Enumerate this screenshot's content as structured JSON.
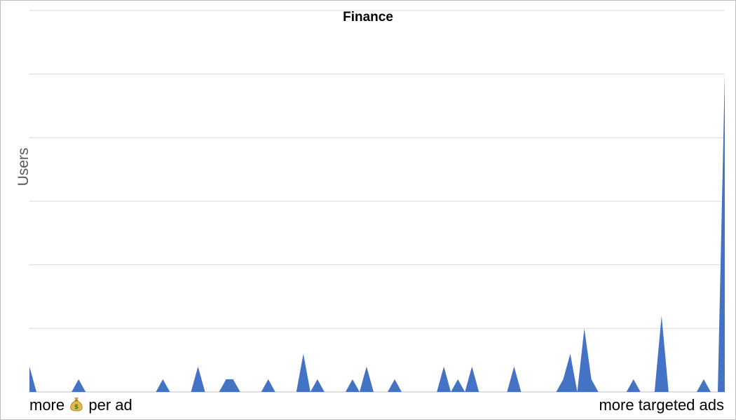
{
  "chart_data": {
    "type": "area",
    "title": "Finance",
    "ylabel": "Users",
    "xlabel_left": "more",
    "xlabel_left_icon": "money-bag-icon",
    "xlabel_left_suffix": "per ad",
    "xlabel_right": "more targeted ads",
    "ylim": [
      0,
      6
    ],
    "grid": true,
    "color": "#4472c4",
    "x": [
      0,
      1,
      2,
      3,
      4,
      5,
      6,
      7,
      8,
      9,
      10,
      11,
      12,
      13,
      14,
      15,
      16,
      17,
      18,
      19,
      20,
      21,
      22,
      23,
      24,
      25,
      26,
      27,
      28,
      29,
      30,
      31,
      32,
      33,
      34,
      35,
      36,
      37,
      38,
      39,
      40,
      41,
      42,
      43,
      44,
      45,
      46,
      47,
      48,
      49,
      50,
      51,
      52,
      53,
      54,
      55,
      56,
      57,
      58,
      59,
      60,
      61,
      62,
      63,
      64,
      65,
      66,
      67,
      68,
      69,
      70,
      71,
      72,
      73,
      74,
      75,
      76,
      77,
      78,
      79,
      80,
      81,
      82,
      83,
      84,
      85,
      86,
      87,
      88,
      89,
      90,
      91,
      92,
      93,
      94,
      95,
      96,
      97,
      98,
      99
    ],
    "values": [
      0.4,
      0,
      0,
      0,
      0,
      0,
      0,
      0.2,
      0,
      0,
      0,
      0,
      0,
      0,
      0,
      0,
      0,
      0,
      0,
      0.2,
      0,
      0,
      0,
      0,
      0.4,
      0,
      0,
      0,
      0.2,
      0.2,
      0,
      0,
      0,
      0,
      0.2,
      0,
      0,
      0,
      0,
      0.6,
      0,
      0.2,
      0,
      0,
      0,
      0,
      0.2,
      0,
      0.4,
      0,
      0,
      0,
      0.2,
      0,
      0,
      0,
      0,
      0,
      0,
      0.4,
      0,
      0.2,
      0,
      0.4,
      0,
      0,
      0,
      0,
      0,
      0.4,
      0,
      0,
      0,
      0,
      0,
      0,
      0.2,
      0.6,
      0,
      1.0,
      0.2,
      0,
      0,
      0,
      0,
      0,
      0.2,
      0,
      0,
      0,
      1.2,
      0,
      0,
      0,
      0,
      0,
      0.2,
      0,
      0,
      5.0
    ]
  },
  "colors": {
    "series": "#4472c4",
    "grid": "#d9d9d9",
    "axis": "#bfbfbf"
  }
}
